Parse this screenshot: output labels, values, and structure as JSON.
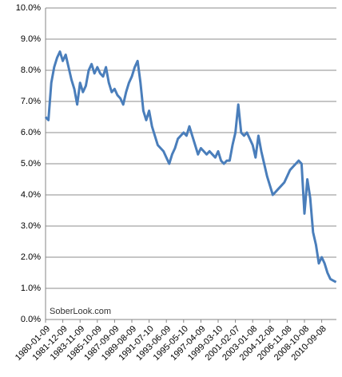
{
  "chart_data": {
    "type": "line",
    "watermark": "SoberLook.com",
    "categories": [
      "1980-01-09",
      null,
      null,
      null,
      null,
      null,
      "1981-12-09",
      null,
      null,
      null,
      null,
      null,
      "1983-11-09",
      null,
      null,
      null,
      null,
      null,
      "1985-10-09",
      null,
      null,
      null,
      null,
      null,
      "1987-09-09",
      null,
      null,
      null,
      null,
      null,
      "1989-08-09",
      null,
      null,
      null,
      null,
      null,
      "1991-07-10",
      null,
      null,
      null,
      null,
      null,
      "1993-06-09",
      null,
      null,
      null,
      null,
      null,
      "1995-05-10",
      null,
      null,
      null,
      null,
      null,
      "1997-04-09",
      null,
      null,
      null,
      null,
      null,
      "1999-03-10",
      null,
      null,
      null,
      null,
      null,
      "2001-02-07",
      null,
      null,
      null,
      null,
      null,
      "2003-01-08",
      null,
      null,
      null,
      null,
      null,
      "2004-12-08",
      null,
      null,
      null,
      null,
      null,
      "2006-11-08",
      null,
      null,
      null,
      null,
      null,
      "2008-10-08",
      null,
      null,
      null,
      null,
      null,
      "2010-09-08",
      null,
      null,
      null,
      null,
      null
    ],
    "series": [
      {
        "color": "#4a7ebb",
        "values": [
          6.5,
          6.4,
          7.6,
          8.1,
          8.4,
          8.6,
          8.3,
          8.5,
          8.1,
          7.7,
          7.4,
          6.9,
          7.6,
          7.3,
          7.5,
          8.0,
          8.2,
          7.9,
          8.1,
          7.9,
          7.8,
          8.1,
          7.6,
          7.3,
          7.4,
          7.2,
          7.1,
          6.9,
          7.3,
          7.6,
          7.8,
          8.1,
          8.3,
          7.6,
          6.7,
          6.4,
          6.7,
          6.2,
          5.9,
          5.6,
          5.5,
          5.4,
          5.2,
          5.0,
          5.3,
          5.5,
          5.8,
          5.9,
          6.0,
          5.9,
          6.2,
          5.9,
          5.6,
          5.3,
          5.5,
          5.4,
          5.3,
          5.4,
          5.3,
          5.2,
          5.4,
          5.1,
          5.0,
          5.1,
          5.1,
          5.6,
          6.0,
          6.9,
          6.0,
          5.9,
          6.0,
          5.8,
          5.6,
          5.2,
          5.9,
          5.4,
          5.0,
          4.6,
          4.3,
          4.0,
          4.1,
          4.2,
          4.3,
          4.4,
          4.6,
          4.8,
          4.9,
          5.0,
          5.1,
          5.0,
          3.4,
          4.5,
          3.9,
          2.8,
          2.4,
          1.8,
          2.0,
          1.8,
          1.5,
          1.3,
          1.25,
          1.2
        ]
      }
    ],
    "ylim": [
      0,
      10
    ],
    "yticks": [
      {
        "value": 0,
        "label": "0.0%"
      },
      {
        "value": 1,
        "label": "1.0%"
      },
      {
        "value": 2,
        "label": "2.0%"
      },
      {
        "value": 3,
        "label": "3.0%"
      },
      {
        "value": 4,
        "label": "4.0%"
      },
      {
        "value": 5,
        "label": "5.0%"
      },
      {
        "value": 6,
        "label": "6.0%"
      },
      {
        "value": 7,
        "label": "7.0%"
      },
      {
        "value": 8,
        "label": "8.0%"
      },
      {
        "value": 9,
        "label": "9.0%"
      },
      {
        "value": 10,
        "label": "10.0%"
      }
    ],
    "grid": true
  }
}
